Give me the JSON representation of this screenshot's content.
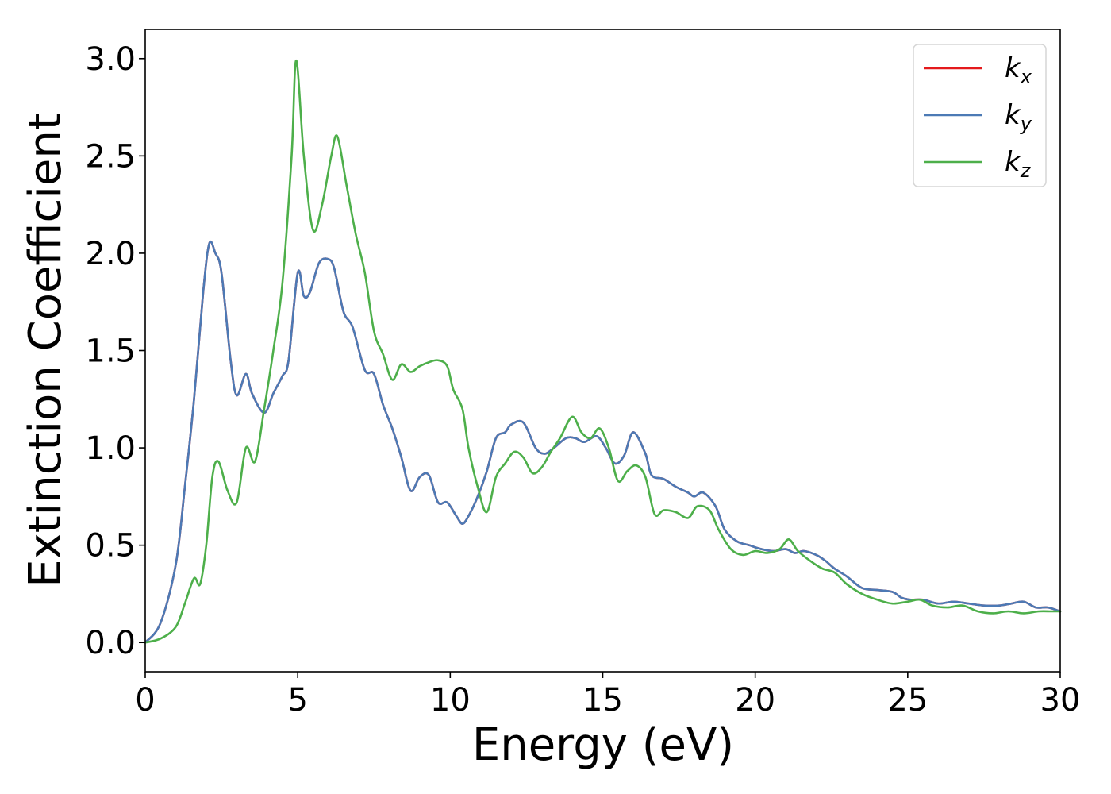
{
  "chart_data": {
    "type": "line",
    "title": "",
    "xlabel": "Energy (eV)",
    "ylabel": "Extinction Coefficient",
    "xlim": [
      0,
      30
    ],
    "ylim": [
      -0.15,
      3.15
    ],
    "xticks": [
      0,
      5,
      10,
      15,
      20,
      25,
      30
    ],
    "xtick_labels": [
      "0",
      "5",
      "10",
      "15",
      "20",
      "25",
      "30"
    ],
    "yticks": [
      0.0,
      0.5,
      1.0,
      1.5,
      2.0,
      2.5,
      3.0
    ],
    "ytick_labels": [
      "0.0",
      "0.5",
      "1.0",
      "1.5",
      "2.0",
      "2.5",
      "3.0"
    ],
    "grid": false,
    "legend_position": "top-right",
    "series": [
      {
        "name": "k_x",
        "legend_base": "k",
        "legend_sub": "x",
        "color": "#e41a1c",
        "x": [
          0,
          0.5,
          1.0,
          1.3,
          1.6,
          1.9,
          2.1,
          2.3,
          2.5,
          2.8,
          3.0,
          3.3,
          3.5,
          3.9,
          4.2,
          4.5,
          4.7,
          5.0,
          5.2,
          5.4,
          5.7,
          6.0,
          6.2,
          6.5,
          6.8,
          7.2,
          7.5,
          7.8,
          8.1,
          8.4,
          8.7,
          9.0,
          9.3,
          9.6,
          9.9,
          10.2,
          10.4,
          10.6,
          10.9,
          11.2,
          11.5,
          11.8,
          12.0,
          12.4,
          12.8,
          13.1,
          13.4,
          13.8,
          14.1,
          14.4,
          14.8,
          15.1,
          15.4,
          15.7,
          16.0,
          16.4,
          16.6,
          17.0,
          17.4,
          17.8,
          18.0,
          18.3,
          18.7,
          19.0,
          19.4,
          19.8,
          20.2,
          20.6,
          21.0,
          21.3,
          21.6,
          22.0,
          22.3,
          22.6,
          23.0,
          23.5,
          24.0,
          24.5,
          24.8,
          25.1,
          25.5,
          26.0,
          26.5,
          27.0,
          27.5,
          28.0,
          28.4,
          28.8,
          29.2,
          29.6,
          30.0
        ],
        "values": [
          0.0,
          0.1,
          0.4,
          0.8,
          1.25,
          1.8,
          2.05,
          2.0,
          1.9,
          1.45,
          1.27,
          1.38,
          1.28,
          1.18,
          1.28,
          1.37,
          1.45,
          1.9,
          1.78,
          1.8,
          1.95,
          1.97,
          1.92,
          1.7,
          1.62,
          1.4,
          1.38,
          1.22,
          1.1,
          0.95,
          0.78,
          0.85,
          0.86,
          0.72,
          0.72,
          0.65,
          0.61,
          0.65,
          0.75,
          0.88,
          1.05,
          1.08,
          1.12,
          1.13,
          1.0,
          0.97,
          1.0,
          1.05,
          1.05,
          1.03,
          1.06,
          1.0,
          0.92,
          0.96,
          1.08,
          0.97,
          0.86,
          0.84,
          0.8,
          0.77,
          0.75,
          0.77,
          0.7,
          0.58,
          0.52,
          0.5,
          0.48,
          0.47,
          0.48,
          0.46,
          0.47,
          0.45,
          0.42,
          0.38,
          0.34,
          0.28,
          0.27,
          0.26,
          0.23,
          0.22,
          0.22,
          0.2,
          0.21,
          0.2,
          0.19,
          0.19,
          0.2,
          0.21,
          0.18,
          0.18,
          0.16
        ]
      },
      {
        "name": "k_y",
        "legend_base": "k",
        "legend_sub": "y",
        "color": "#4c7ab5",
        "x": [
          0,
          0.5,
          1.0,
          1.3,
          1.6,
          1.9,
          2.1,
          2.3,
          2.5,
          2.8,
          3.0,
          3.3,
          3.5,
          3.9,
          4.2,
          4.5,
          4.7,
          5.0,
          5.2,
          5.4,
          5.7,
          6.0,
          6.2,
          6.5,
          6.8,
          7.2,
          7.5,
          7.8,
          8.1,
          8.4,
          8.7,
          9.0,
          9.3,
          9.6,
          9.9,
          10.2,
          10.4,
          10.6,
          10.9,
          11.2,
          11.5,
          11.8,
          12.0,
          12.4,
          12.8,
          13.1,
          13.4,
          13.8,
          14.1,
          14.4,
          14.8,
          15.1,
          15.4,
          15.7,
          16.0,
          16.4,
          16.6,
          17.0,
          17.4,
          17.8,
          18.0,
          18.3,
          18.7,
          19.0,
          19.4,
          19.8,
          20.2,
          20.6,
          21.0,
          21.3,
          21.6,
          22.0,
          22.3,
          22.6,
          23.0,
          23.5,
          24.0,
          24.5,
          24.8,
          25.1,
          25.5,
          26.0,
          26.5,
          27.0,
          27.5,
          28.0,
          28.4,
          28.8,
          29.2,
          29.6,
          30.0
        ],
        "values": [
          0.0,
          0.1,
          0.4,
          0.8,
          1.25,
          1.8,
          2.05,
          2.0,
          1.9,
          1.45,
          1.27,
          1.38,
          1.28,
          1.18,
          1.28,
          1.37,
          1.45,
          1.9,
          1.78,
          1.8,
          1.95,
          1.97,
          1.92,
          1.7,
          1.62,
          1.4,
          1.38,
          1.22,
          1.1,
          0.95,
          0.78,
          0.85,
          0.86,
          0.72,
          0.72,
          0.65,
          0.61,
          0.65,
          0.75,
          0.88,
          1.05,
          1.08,
          1.12,
          1.13,
          1.0,
          0.97,
          1.0,
          1.05,
          1.05,
          1.03,
          1.06,
          1.0,
          0.92,
          0.96,
          1.08,
          0.97,
          0.86,
          0.84,
          0.8,
          0.77,
          0.75,
          0.77,
          0.7,
          0.58,
          0.52,
          0.5,
          0.48,
          0.47,
          0.48,
          0.46,
          0.47,
          0.45,
          0.42,
          0.38,
          0.34,
          0.28,
          0.27,
          0.26,
          0.23,
          0.22,
          0.22,
          0.2,
          0.21,
          0.2,
          0.19,
          0.19,
          0.2,
          0.21,
          0.18,
          0.18,
          0.16
        ]
      },
      {
        "name": "k_z",
        "legend_base": "k",
        "legend_sub": "z",
        "color": "#4daf4a",
        "x": [
          0,
          0.5,
          1.0,
          1.3,
          1.6,
          1.8,
          2.0,
          2.2,
          2.4,
          2.7,
          3.0,
          3.3,
          3.6,
          3.9,
          4.2,
          4.5,
          4.8,
          4.95,
          5.2,
          5.5,
          5.8,
          6.1,
          6.3,
          6.6,
          6.9,
          7.2,
          7.5,
          7.8,
          8.1,
          8.4,
          8.7,
          9.0,
          9.3,
          9.6,
          9.9,
          10.1,
          10.4,
          10.6,
          10.9,
          11.2,
          11.5,
          11.8,
          12.1,
          12.4,
          12.7,
          13.0,
          13.3,
          13.6,
          14.0,
          14.3,
          14.6,
          14.9,
          15.2,
          15.5,
          15.8,
          16.1,
          16.4,
          16.7,
          17.0,
          17.4,
          17.8,
          18.1,
          18.5,
          18.8,
          19.2,
          19.6,
          20.0,
          20.4,
          20.8,
          21.1,
          21.4,
          21.8,
          22.2,
          22.6,
          23.0,
          23.5,
          24.0,
          24.5,
          25.0,
          25.4,
          25.8,
          26.3,
          26.8,
          27.3,
          27.8,
          28.3,
          28.8,
          29.3,
          29.7,
          30.0
        ],
        "values": [
          0.0,
          0.02,
          0.08,
          0.2,
          0.33,
          0.3,
          0.5,
          0.85,
          0.93,
          0.78,
          0.72,
          1.0,
          0.93,
          1.2,
          1.5,
          1.85,
          2.5,
          2.99,
          2.5,
          2.12,
          2.25,
          2.5,
          2.6,
          2.35,
          2.1,
          1.9,
          1.6,
          1.48,
          1.35,
          1.43,
          1.39,
          1.42,
          1.44,
          1.45,
          1.42,
          1.3,
          1.2,
          1.0,
          0.8,
          0.67,
          0.85,
          0.92,
          0.98,
          0.95,
          0.87,
          0.9,
          0.98,
          1.05,
          1.16,
          1.08,
          1.05,
          1.1,
          1.0,
          0.83,
          0.88,
          0.91,
          0.85,
          0.66,
          0.68,
          0.67,
          0.64,
          0.7,
          0.68,
          0.58,
          0.48,
          0.45,
          0.47,
          0.46,
          0.48,
          0.53,
          0.47,
          0.42,
          0.38,
          0.36,
          0.3,
          0.25,
          0.22,
          0.2,
          0.21,
          0.22,
          0.19,
          0.18,
          0.19,
          0.16,
          0.15,
          0.16,
          0.15,
          0.16,
          0.16,
          0.16
        ]
      }
    ]
  }
}
